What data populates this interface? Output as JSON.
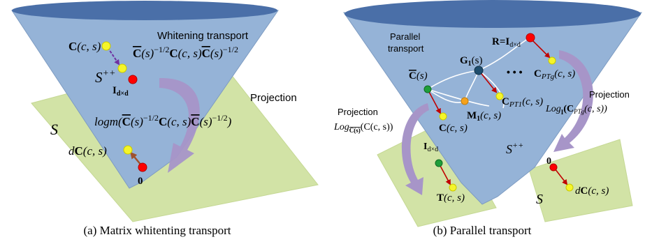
{
  "panel_a": {
    "caption": "(a) Matrix whitenting transport",
    "labels": {
      "c_cs_bold": "C",
      "c_cs_args": "(c, s)",
      "whitening_title": "Whitening transport",
      "whitening_formula_p1": "C",
      "whitening_formula_p2": "(s)",
      "whitening_formula_exp": "−1/2",
      "whitening_formula_p3": "C",
      "whitening_formula_p4": "(c, s)",
      "whitening_formula_p5": "C",
      "whitening_formula_p6": "(s)",
      "spp": "S",
      "spp_sup": "++",
      "identity": "I",
      "identity_sub": "d×d",
      "projection_title": "Projection",
      "s_plane": "S",
      "logm_p1": "logm(",
      "logm_p2": "C",
      "logm_p3": "(s)",
      "logm_exp": "−1/2",
      "logm_p4": "C",
      "logm_p5": "(c, s)",
      "logm_p6": "C",
      "logm_p7": "(s)",
      "logm_p8": ")",
      "dc_p1": "d",
      "dc_p2": "C",
      "dc_p3": "(c, s)",
      "zero": "0"
    }
  },
  "panel_b": {
    "caption": "(b) Parallel transport",
    "labels": {
      "parallel": "Parallel",
      "transport": "transport",
      "r_eq": "R=I",
      "r_sub": "d×d",
      "g1": "G",
      "g1_sub": "1",
      "g1_arg": "(s)",
      "dots": "• • •",
      "cbar_p1": "C",
      "cbar_p2": "(s)",
      "cptg_p1": "C",
      "cptg_sub": "PTg",
      "cptg_args": "(c, s)",
      "cpt1_p1": "C",
      "cpt1_sub": "PT1",
      "cpt1_args": "(c, s)",
      "m1_p1": "M",
      "m1_sub": "1",
      "m1_args": "(c, s)",
      "c_p1": "C",
      "c_args": "(c, s)",
      "proj_left_title": "Projection",
      "log_left_p1": "Log",
      "log_left_sub": "C(s)",
      "log_left_p2": "(C(c, s))",
      "proj_right_title": "Projection",
      "log_right_p1": "Log",
      "log_right_sub": "I",
      "log_right_p2": "(C",
      "log_right_sub2": "PTg",
      "log_right_p3": "(c, s))",
      "spp": "S",
      "spp_sup": "++",
      "id_left": "I",
      "id_left_sub": "d×d",
      "t_p1": "T",
      "t_args": "(c, s)",
      "zero": "0",
      "dc_p1": "d",
      "dc_p2": "C",
      "dc_args": "(c, s)",
      "s_plane": "S"
    }
  },
  "colors": {
    "cone_fill": "#95b3d7",
    "cone_top": "#4a6fa8",
    "plane_fill": "#d2e3a6",
    "arrow_purple": "#a795c8",
    "dot_yellow": "#f5f52a",
    "dot_red": "#ff0000",
    "dot_green": "#1f9e3a",
    "dot_navy": "#1f4e6e",
    "dot_orange": "#f5a21c",
    "arrow_red": "#c00000",
    "arrow_dashed": "#7030a0"
  }
}
